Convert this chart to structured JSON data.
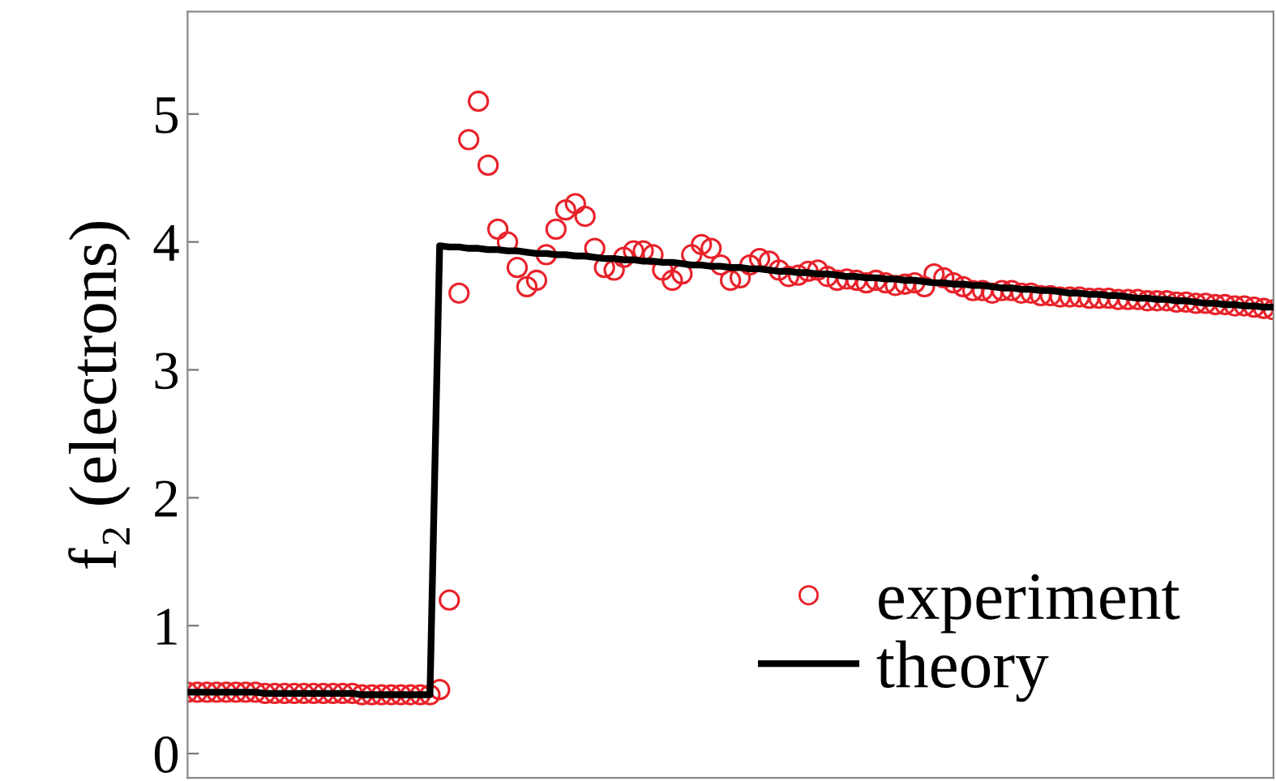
{
  "chart_data": {
    "type": "scatter",
    "ylabel": "f₂ (electrons)",
    "categories": [
      null,
      null,
      null,
      null,
      null,
      null,
      null,
      null,
      null,
      null,
      null,
      null,
      null,
      null,
      null,
      null,
      null,
      null,
      null,
      null,
      null,
      null,
      null,
      null,
      null,
      null,
      null,
      null,
      null,
      null,
      null,
      null,
      null,
      null,
      null,
      null,
      null,
      null,
      null,
      null,
      null,
      null,
      null,
      null,
      null,
      null,
      null,
      null,
      null,
      null,
      null,
      null,
      null,
      null,
      null,
      null,
      null,
      null,
      null,
      null,
      null,
      null,
      null,
      null,
      null,
      null,
      null,
      null,
      null,
      null,
      null,
      null,
      null,
      null,
      null,
      null,
      null,
      null,
      null,
      null,
      null,
      null,
      null,
      null,
      null,
      null,
      null,
      null,
      null,
      null,
      null,
      null,
      null,
      null,
      null,
      null,
      null,
      null,
      null,
      null,
      null,
      null,
      null,
      null,
      null,
      null,
      null,
      null,
      null,
      null,
      null,
      null,
      null
    ],
    "series": [
      {
        "name": "experiment",
        "marker": "circle",
        "color": "#e8222a",
        "values": [
          0.48,
          0.48,
          0.48,
          0.48,
          0.48,
          0.48,
          0.48,
          0.48,
          0.47,
          0.47,
          0.47,
          0.47,
          0.47,
          0.47,
          0.47,
          0.47,
          0.47,
          0.47,
          0.46,
          0.46,
          0.46,
          0.46,
          0.46,
          0.46,
          0.46,
          0.46,
          0.5,
          1.2,
          3.6,
          4.8,
          5.1,
          4.6,
          4.1,
          4.0,
          3.8,
          3.65,
          3.7,
          3.9,
          4.1,
          4.25,
          4.3,
          4.2,
          3.95,
          3.8,
          3.78,
          3.88,
          3.93,
          3.93,
          3.9,
          3.78,
          3.7,
          3.75,
          3.9,
          3.98,
          3.95,
          3.82,
          3.7,
          3.72,
          3.82,
          3.87,
          3.85,
          3.78,
          3.73,
          3.74,
          3.77,
          3.78,
          3.73,
          3.7,
          3.71,
          3.7,
          3.68,
          3.7,
          3.68,
          3.66,
          3.67,
          3.68,
          3.65,
          3.75,
          3.72,
          3.68,
          3.65,
          3.62,
          3.62,
          3.6,
          3.62,
          3.62,
          3.6,
          3.6,
          3.58,
          3.58,
          3.57,
          3.57,
          3.57,
          3.56,
          3.56,
          3.56,
          3.55,
          3.55,
          3.55,
          3.54,
          3.54,
          3.54,
          3.53,
          3.53,
          3.52,
          3.52,
          3.51,
          3.51,
          3.5,
          3.5,
          3.49,
          3.48,
          3.47
        ]
      },
      {
        "name": "theory",
        "type": "line",
        "line_style": "solid",
        "color": "#000000",
        "values": [
          0.48,
          0.48,
          0.48,
          0.48,
          0.48,
          0.48,
          0.48,
          0.48,
          0.47,
          0.47,
          0.47,
          0.47,
          0.47,
          0.47,
          0.47,
          0.47,
          0.47,
          0.47,
          0.46,
          0.46,
          0.46,
          0.46,
          0.46,
          0.46,
          0.46,
          0.46,
          3.97,
          3.96,
          3.96,
          3.95,
          3.95,
          3.94,
          3.94,
          3.93,
          3.93,
          3.92,
          3.91,
          3.91,
          3.9,
          3.9,
          3.89,
          3.89,
          3.88,
          3.87,
          3.87,
          3.86,
          3.86,
          3.85,
          3.85,
          3.84,
          3.84,
          3.83,
          3.82,
          3.82,
          3.81,
          3.81,
          3.8,
          3.8,
          3.79,
          3.79,
          3.78,
          3.77,
          3.77,
          3.76,
          3.76,
          3.75,
          3.75,
          3.74,
          3.73,
          3.73,
          3.72,
          3.72,
          3.71,
          3.71,
          3.7,
          3.7,
          3.69,
          3.68,
          3.68,
          3.67,
          3.67,
          3.66,
          3.66,
          3.65,
          3.64,
          3.64,
          3.63,
          3.63,
          3.62,
          3.62,
          3.61,
          3.6,
          3.6,
          3.59,
          3.59,
          3.58,
          3.58,
          3.57,
          3.56,
          3.56,
          3.55,
          3.55,
          3.54,
          3.54,
          3.53,
          3.52,
          3.52,
          3.51,
          3.51,
          3.5,
          3.5,
          3.49,
          3.49
        ]
      }
    ],
    "ylim": [
      -0.19,
      5.8
    ],
    "yticks": [
      0,
      1,
      2,
      3,
      4,
      5
    ],
    "tick_labels": "y",
    "grid": false,
    "legend": "bottom right"
  }
}
